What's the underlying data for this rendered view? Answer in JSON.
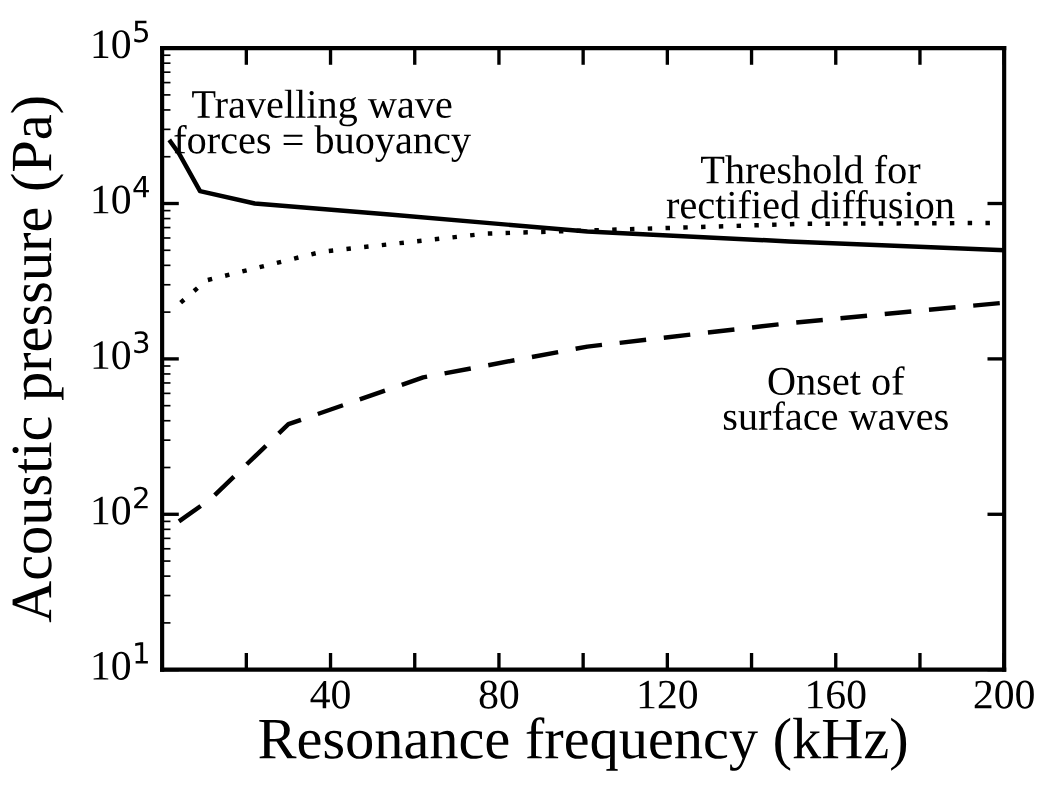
{
  "chart_data": {
    "type": "line",
    "xlabel": "Resonance frequency (kHz)",
    "ylabel": "Acoustic pressure (Pa)",
    "log": "y",
    "grid": false,
    "legend": false,
    "xlim": [
      0,
      200
    ],
    "xticks": [
      {
        "value": 20,
        "label": null
      },
      40,
      {
        "value": 60,
        "label": null
      },
      80,
      {
        "value": 100,
        "label": null
      },
      120,
      {
        "value": 140,
        "label": null
      },
      160,
      {
        "value": 180,
        "label": null
      },
      200
    ],
    "ylim": [
      10,
      100000
    ],
    "yticks": [
      {
        "value": 10,
        "label": "10$^{1}$"
      },
      {
        "value": 100,
        "label": "10$^{2}$"
      },
      {
        "value": 1000,
        "label": "10$^{3}$"
      },
      {
        "value": 10000,
        "label": "10$^{4}$"
      },
      {
        "value": 100000,
        "label": "10$^{5}$"
      }
    ],
    "series": [
      {
        "color": "#000000",
        "line_style": "solid",
        "x": [
          2,
          4,
          9,
          22,
          54,
          101,
          149,
          200
        ],
        "values": [
          25000,
          21000,
          12000,
          10000,
          8500,
          6600,
          5700,
          5000
        ]
      },
      {
        "color": "#000000",
        "line_style": "dotted",
        "x": [
          4.4,
          10.5,
          38,
          77,
          152,
          200
        ],
        "values": [
          2300,
          3200,
          4900,
          6400,
          7400,
          7500
        ]
      },
      {
        "color": "#000000",
        "line_style": "dashed",
        "x": [
          4,
          11.6,
          30,
          62,
          101,
          149,
          200
        ],
        "values": [
          90,
          126,
          380,
          760,
          1200,
          1700,
          2300
        ]
      }
    ],
    "annotations": [
      "Travelling wave\nforces = buoyancy",
      "Threshold for\nrectified diffusion",
      "Onset of\nsurface waves"
    ]
  }
}
